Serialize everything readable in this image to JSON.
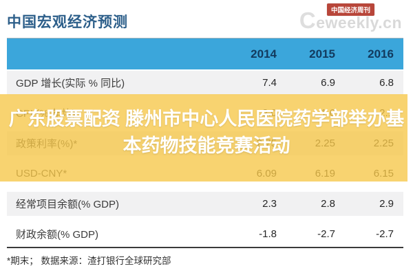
{
  "page_title": "中国宏观经济预测",
  "logo": {
    "badge_label": "中国经济周刊",
    "watermark_first_letter": "C",
    "watermark_rest": "eweekly.cn"
  },
  "overlay": {
    "lines": [
      "广东股票配资 滕州市中心人民医院药学部举办基",
      "本药物技能竞赛活动"
    ],
    "full_text": "广东股票配资 滕州市中心人民医院药学部举办基本药物技能竞赛活动",
    "highlight_color": "#F8D370"
  },
  "chart_data": {
    "type": "table",
    "title": "中国宏观经济预测",
    "columns": [
      "2014",
      "2015",
      "2016"
    ],
    "rows": [
      {
        "label": "GDP 增长(实际 % 同比)",
        "values": [
          "7.4",
          "6.9",
          "6.8"
        ]
      },
      {
        "label": "CPI (% 年均)",
        "values": [
          "2.0",
          "1.6",
          "2.1"
        ]
      },
      {
        "label": "政策利率(%)*",
        "values": [
          "2.75",
          "2.25",
          "2.25"
        ]
      },
      {
        "label": "USD-CNY*",
        "values": [
          "6.09",
          "6.19",
          "6.15"
        ]
      },
      {
        "label": "经常项目余额(% GDP)",
        "values": [
          "2.3",
          "2.8",
          "2.9"
        ]
      },
      {
        "label": "财政余额(% GDP)",
        "values": [
          "-1.8",
          "-2.7",
          "-2.7"
        ]
      }
    ],
    "highlighted_row_labels": [
      "CPI (% 年均)",
      "政策利率(%)*",
      "USD-CNY*"
    ],
    "footnote": "*期末；  数据来源：渣打银行全球研究部"
  },
  "colors": {
    "header_bar": "#3BA6DB",
    "header_text": "#123A5E",
    "title_text": "#2D5F8A",
    "stripe": "#F1F1F2",
    "badge_red": "#B8463A",
    "watermark_gray": "#D9D9D9",
    "highlight_yellow": "#F8D370",
    "overlay_text": "#FFFFFF"
  }
}
